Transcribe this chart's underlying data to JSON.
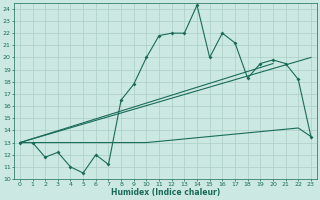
{
  "xlabel": "Humidex (Indice chaleur)",
  "xlim": [
    -0.5,
    23.5
  ],
  "ylim": [
    10,
    24.5
  ],
  "xticks": [
    0,
    1,
    2,
    3,
    4,
    5,
    6,
    7,
    8,
    9,
    10,
    11,
    12,
    13,
    14,
    15,
    16,
    17,
    18,
    19,
    20,
    21,
    22,
    23
  ],
  "yticks": [
    10,
    11,
    12,
    13,
    14,
    15,
    16,
    17,
    18,
    19,
    20,
    21,
    22,
    23,
    24
  ],
  "background_color": "#cce8e2",
  "grid_color": "#aacfc8",
  "line_color": "#1a6b5a",
  "series1_x": [
    0,
    1,
    2,
    3,
    4,
    5,
    6,
    7,
    8,
    9,
    10,
    11,
    12,
    13,
    14,
    15,
    16,
    17,
    18,
    19,
    20,
    21,
    22,
    23
  ],
  "series1_y": [
    13,
    13,
    11.8,
    12.2,
    11.0,
    10.5,
    12.0,
    11.2,
    16.5,
    17.8,
    20.0,
    21.8,
    22.0,
    22.0,
    24.3,
    20.0,
    22.0,
    21.2,
    18.3,
    19.5,
    19.8,
    19.5,
    18.2,
    13.5
  ],
  "series2_x": [
    0,
    1,
    2,
    3,
    4,
    5,
    6,
    7,
    8,
    9,
    10,
    11,
    12,
    13,
    14,
    15,
    16,
    17,
    18,
    19,
    20,
    21,
    22,
    23
  ],
  "series2_y": [
    13,
    13,
    13,
    13,
    13,
    13,
    13,
    13,
    13,
    13,
    13,
    13.1,
    13.2,
    13.3,
    13.4,
    13.5,
    13.6,
    13.7,
    13.8,
    13.9,
    14.0,
    14.1,
    14.2,
    13.5
  ],
  "series3_x": [
    0,
    23
  ],
  "series3_y": [
    13,
    20.0
  ],
  "series4_x": [
    0,
    20
  ],
  "series4_y": [
    13,
    19.5
  ]
}
